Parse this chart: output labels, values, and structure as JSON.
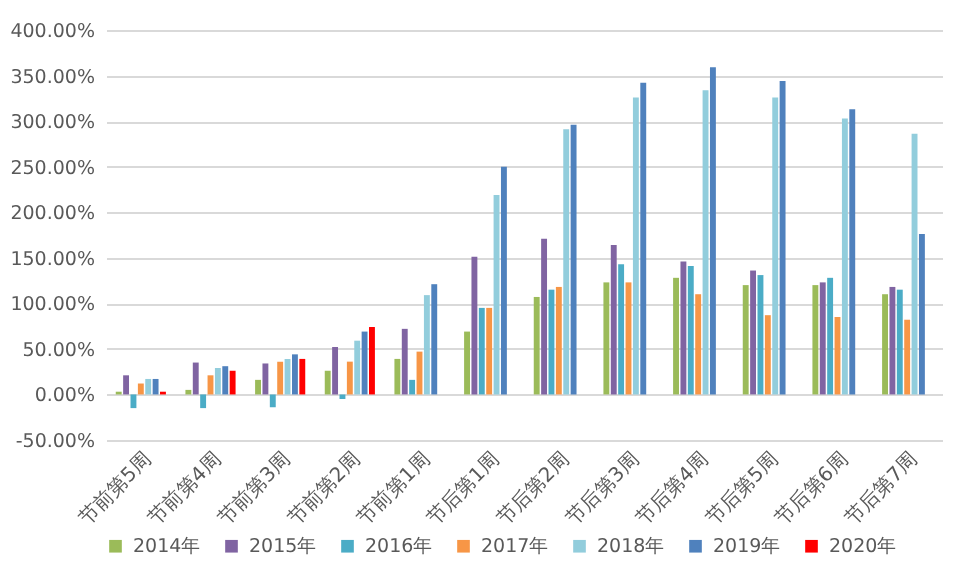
{
  "chart_data": {
    "type": "bar",
    "categories": [
      "节前第5周",
      "节前第4周",
      "节前第3周",
      "节前第2周",
      "节前第1周",
      "节后第1周",
      "节后第2周",
      "节后第3周",
      "节后第4周",
      "节后第5周",
      "节后第6周",
      "节后第7周"
    ],
    "series": [
      {
        "name": "2014年",
        "color": "#9bbb59",
        "values": [
          3,
          5,
          16,
          26,
          39,
          69,
          107,
          123,
          128,
          120,
          120,
          110
        ]
      },
      {
        "name": "2015年",
        "color": "#8064a2",
        "values": [
          21,
          35,
          34,
          52,
          72,
          151,
          171,
          164,
          146,
          136,
          123,
          118
        ]
      },
      {
        "name": "2016年",
        "color": "#4bacc6",
        "values": [
          -15,
          -15,
          -14,
          -5,
          16,
          95,
          115,
          143,
          141,
          131,
          128,
          115
        ]
      },
      {
        "name": "2017年",
        "color": "#f79646",
        "values": [
          12,
          21,
          36,
          36,
          47,
          95,
          118,
          123,
          110,
          87,
          85,
          82
        ]
      },
      {
        "name": "2018年",
        "color": "#92cddc",
        "values": [
          17,
          29,
          39,
          59,
          109,
          219,
          291,
          326,
          334,
          326,
          303,
          286
        ]
      },
      {
        "name": "2019年",
        "color": "#4f81bd",
        "values": [
          17,
          31,
          44,
          69,
          121,
          250,
          296,
          342,
          359,
          344,
          313,
          176
        ]
      },
      {
        "name": "2020年",
        "color": "#ff0000",
        "values": [
          3,
          26,
          39,
          74,
          null,
          null,
          null,
          null,
          null,
          null,
          null,
          null
        ]
      }
    ],
    "ylim": [
      -50,
      400
    ],
    "yticks": [
      {
        "value": -50,
        "label": "-50.00%"
      },
      {
        "value": 0,
        "label": "0.00%"
      },
      {
        "value": 50,
        "label": "50.00%"
      },
      {
        "value": 100,
        "label": "100.00%"
      },
      {
        "value": 150,
        "label": "150.00%"
      },
      {
        "value": 200,
        "label": "200.00%"
      },
      {
        "value": 250,
        "label": "250.00%"
      },
      {
        "value": 300,
        "label": "300.00%"
      },
      {
        "value": 350,
        "label": "350.00%"
      },
      {
        "value": 400,
        "label": "400.00%"
      }
    ],
    "grid": "y",
    "legend": "bottom"
  }
}
